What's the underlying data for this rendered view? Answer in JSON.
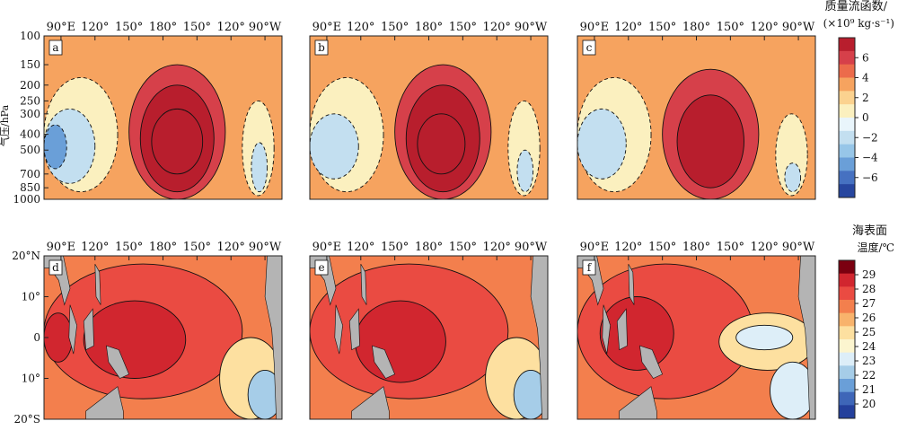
{
  "chart_data": [
    {
      "type": "contour",
      "panel_label": "a",
      "row": "mass_stream_function",
      "x_ticks": [
        "90°E",
        "120°",
        "150°",
        "180°",
        "150°",
        "120°",
        "90°W"
      ],
      "y_ticks": [
        "100",
        "150",
        "200",
        "250",
        "300",
        "400",
        "500",
        "700",
        "850",
        "1000"
      ],
      "ylabel": "气压/hPa",
      "y_scale": "log",
      "features": [
        {
          "lon_start_E": 150,
          "lon_end_E": 235,
          "p_range_hPa": [
            150,
            1000
          ],
          "value": 2,
          "shape": "outer"
        },
        {
          "lon_start_E": 160,
          "lon_end_E": 225,
          "p_range_hPa": [
            200,
            900
          ],
          "value": 4,
          "shape": "middle"
        },
        {
          "lon_start_E": 170,
          "lon_end_E": 215,
          "p_range_hPa": [
            280,
            700
          ],
          "value": 6,
          "shape": "core"
        },
        {
          "lon_start_E": 75,
          "lon_end_E": 140,
          "p_range_hPa": [
            180,
            900
          ],
          "value": -2,
          "shape": "outer"
        },
        {
          "lon_start_E": 75,
          "lon_end_E": 120,
          "p_range_hPa": [
            280,
            800
          ],
          "value": -4,
          "shape": "core"
        },
        {
          "lon_start_E": 75,
          "lon_end_E": 95,
          "p_range_hPa": [
            350,
            650
          ],
          "value": -6,
          "shape": "core"
        },
        {
          "lon_start_E": 250,
          "lon_end_E": 278,
          "p_range_hPa": [
            250,
            950
          ],
          "value": -2,
          "shape": "outer"
        },
        {
          "lon_start_E": 258,
          "lon_end_E": 272,
          "p_range_hPa": [
            450,
            900
          ],
          "value": -4,
          "shape": "core"
        }
      ]
    },
    {
      "type": "contour",
      "panel_label": "b",
      "row": "mass_stream_function",
      "x_ticks": [
        "90°E",
        "120°",
        "150°",
        "180°",
        "150°",
        "120°",
        "90°W"
      ],
      "features": [
        {
          "lon_start_E": 150,
          "lon_end_E": 235,
          "p_range_hPa": [
            150,
            1000
          ],
          "value": 2,
          "shape": "outer"
        },
        {
          "lon_start_E": 160,
          "lon_end_E": 225,
          "p_range_hPa": [
            200,
            900
          ],
          "value": 4,
          "shape": "middle"
        },
        {
          "lon_start_E": 170,
          "lon_end_E": 212,
          "p_range_hPa": [
            300,
            700
          ],
          "value": 6,
          "shape": "core"
        },
        {
          "lon_start_E": 75,
          "lon_end_E": 140,
          "p_range_hPa": [
            180,
            900
          ],
          "value": -2,
          "shape": "outer"
        },
        {
          "lon_start_E": 75,
          "lon_end_E": 118,
          "p_range_hPa": [
            300,
            750
          ],
          "value": -4,
          "shape": "core"
        },
        {
          "lon_start_E": 250,
          "lon_end_E": 278,
          "p_range_hPa": [
            250,
            950
          ],
          "value": -2,
          "shape": "outer"
        },
        {
          "lon_start_E": 258,
          "lon_end_E": 272,
          "p_range_hPa": [
            500,
            900
          ],
          "value": -4,
          "shape": "core"
        }
      ]
    },
    {
      "type": "contour",
      "panel_label": "c",
      "row": "mass_stream_function",
      "x_ticks": [
        "90°E",
        "120°",
        "150°",
        "180°",
        "150°",
        "120°",
        "90°W"
      ],
      "features": [
        {
          "lon_start_E": 150,
          "lon_end_E": 235,
          "p_range_hPa": [
            160,
            1000
          ],
          "value": 2,
          "shape": "outer"
        },
        {
          "lon_start_E": 163,
          "lon_end_E": 222,
          "p_range_hPa": [
            230,
            850
          ],
          "value": 4,
          "shape": "middle"
        },
        {
          "lon_start_E": 75,
          "lon_end_E": 140,
          "p_range_hPa": [
            180,
            900
          ],
          "value": -2,
          "shape": "outer"
        },
        {
          "lon_start_E": 75,
          "lon_end_E": 118,
          "p_range_hPa": [
            280,
            750
          ],
          "value": -4,
          "shape": "core"
        },
        {
          "lon_start_E": 250,
          "lon_end_E": 278,
          "p_range_hPa": [
            300,
            950
          ],
          "value": -2,
          "shape": "outer"
        },
        {
          "lon_start_E": 258,
          "lon_end_E": 272,
          "p_range_hPa": [
            600,
            900
          ],
          "value": -4,
          "shape": "core"
        }
      ]
    },
    {
      "type": "contour",
      "panel_label": "d",
      "row": "sea_surface_temperature",
      "x_ticks": [
        "90°E",
        "120°",
        "150°",
        "180°",
        "150°",
        "120°",
        "90°W"
      ],
      "y_ticks": [
        "20°N",
        "10°",
        "0",
        "10°",
        "20°S"
      ],
      "features": [
        {
          "lon_start_E": 75,
          "lon_end_E": 250,
          "lat_range": [
            -15,
            18
          ],
          "value": 28,
          "shape": "outer"
        },
        {
          "lon_start_E": 110,
          "lon_end_E": 200,
          "lat_range": [
            -10,
            9
          ],
          "value": 29,
          "shape": "core"
        },
        {
          "lon_start_E": 75,
          "lon_end_E": 100,
          "lat_range": [
            -6,
            6
          ],
          "value": 29,
          "shape": "core"
        },
        {
          "lon_start_E": 230,
          "lon_end_E": 285,
          "lat_range": [
            -20,
            0
          ],
          "value": 25,
          "shape": "outer"
        },
        {
          "lon_start_E": 255,
          "lon_end_E": 285,
          "lat_range": [
            -20,
            -8
          ],
          "value": 22,
          "shape": "core"
        }
      ]
    },
    {
      "type": "contour",
      "panel_label": "e",
      "row": "sea_surface_temperature",
      "x_ticks": [
        "90°E",
        "120°",
        "150°",
        "180°",
        "150°",
        "120°",
        "90°W"
      ],
      "features": [
        {
          "lon_start_E": 75,
          "lon_end_E": 250,
          "lat_range": [
            -15,
            18
          ],
          "value": 28,
          "shape": "outer"
        },
        {
          "lon_start_E": 115,
          "lon_end_E": 195,
          "lat_range": [
            -11,
            9
          ],
          "value": 29,
          "shape": "core"
        },
        {
          "lon_start_E": 230,
          "lon_end_E": 285,
          "lat_range": [
            -20,
            0
          ],
          "value": 25,
          "shape": "outer"
        },
        {
          "lon_start_E": 255,
          "lon_end_E": 285,
          "lat_range": [
            -20,
            -8
          ],
          "value": 22,
          "shape": "core"
        }
      ]
    },
    {
      "type": "contour",
      "panel_label": "f",
      "row": "sea_surface_temperature",
      "x_ticks": [
        "90°E",
        "120°",
        "150°",
        "180°",
        "150°",
        "120°",
        "90°W"
      ],
      "features": [
        {
          "lon_start_E": 75,
          "lon_end_E": 230,
          "lat_range": [
            -15,
            18
          ],
          "value": 28,
          "shape": "outer"
        },
        {
          "lon_start_E": 95,
          "lon_end_E": 160,
          "lat_range": [
            -8,
            10
          ],
          "value": 29,
          "shape": "core"
        },
        {
          "lon_start_E": 200,
          "lon_end_E": 285,
          "lat_range": [
            -8,
            6
          ],
          "value": 25,
          "shape": "outer"
        },
        {
          "lon_start_E": 215,
          "lon_end_E": 265,
          "lat_range": [
            -3,
            3
          ],
          "value": 23,
          "shape": "core"
        },
        {
          "lon_start_E": 245,
          "lon_end_E": 285,
          "lat_range": [
            -20,
            -6
          ],
          "value": 23,
          "shape": "core"
        }
      ]
    }
  ],
  "colorbars": [
    {
      "title_line1": "质量流函数/",
      "title_line2": "(×10⁹ kg·s⁻¹)",
      "ticks": [
        "6",
        "4",
        "2",
        "0",
        "−2",
        "−4",
        "−6"
      ],
      "colors": [
        "#b81e2d",
        "#d6404a",
        "#ec6b4b",
        "#f6a35f",
        "#fbd28f",
        "#fbf0bf",
        "#e9f5fb",
        "#c3dff0",
        "#97c6e8",
        "#6a9fd8",
        "#4671c1",
        "#27469f"
      ]
    },
    {
      "title_line1": "海表面",
      "title_line2": "温度/℃",
      "ticks": [
        "29",
        "28",
        "27",
        "26",
        "25",
        "24",
        "23",
        "22",
        "21",
        "20"
      ],
      "colors": [
        "#7b0010",
        "#d1262f",
        "#ea4b42",
        "#f37f4d",
        "#f8b36c",
        "#fde0a0",
        "#fcf5cf",
        "#ddeef8",
        "#a6cde8",
        "#6a9fd8",
        "#3e66b8",
        "#24409c"
      ]
    }
  ],
  "colors": {
    "land": "#b4b4b4",
    "frame": "#222222"
  }
}
